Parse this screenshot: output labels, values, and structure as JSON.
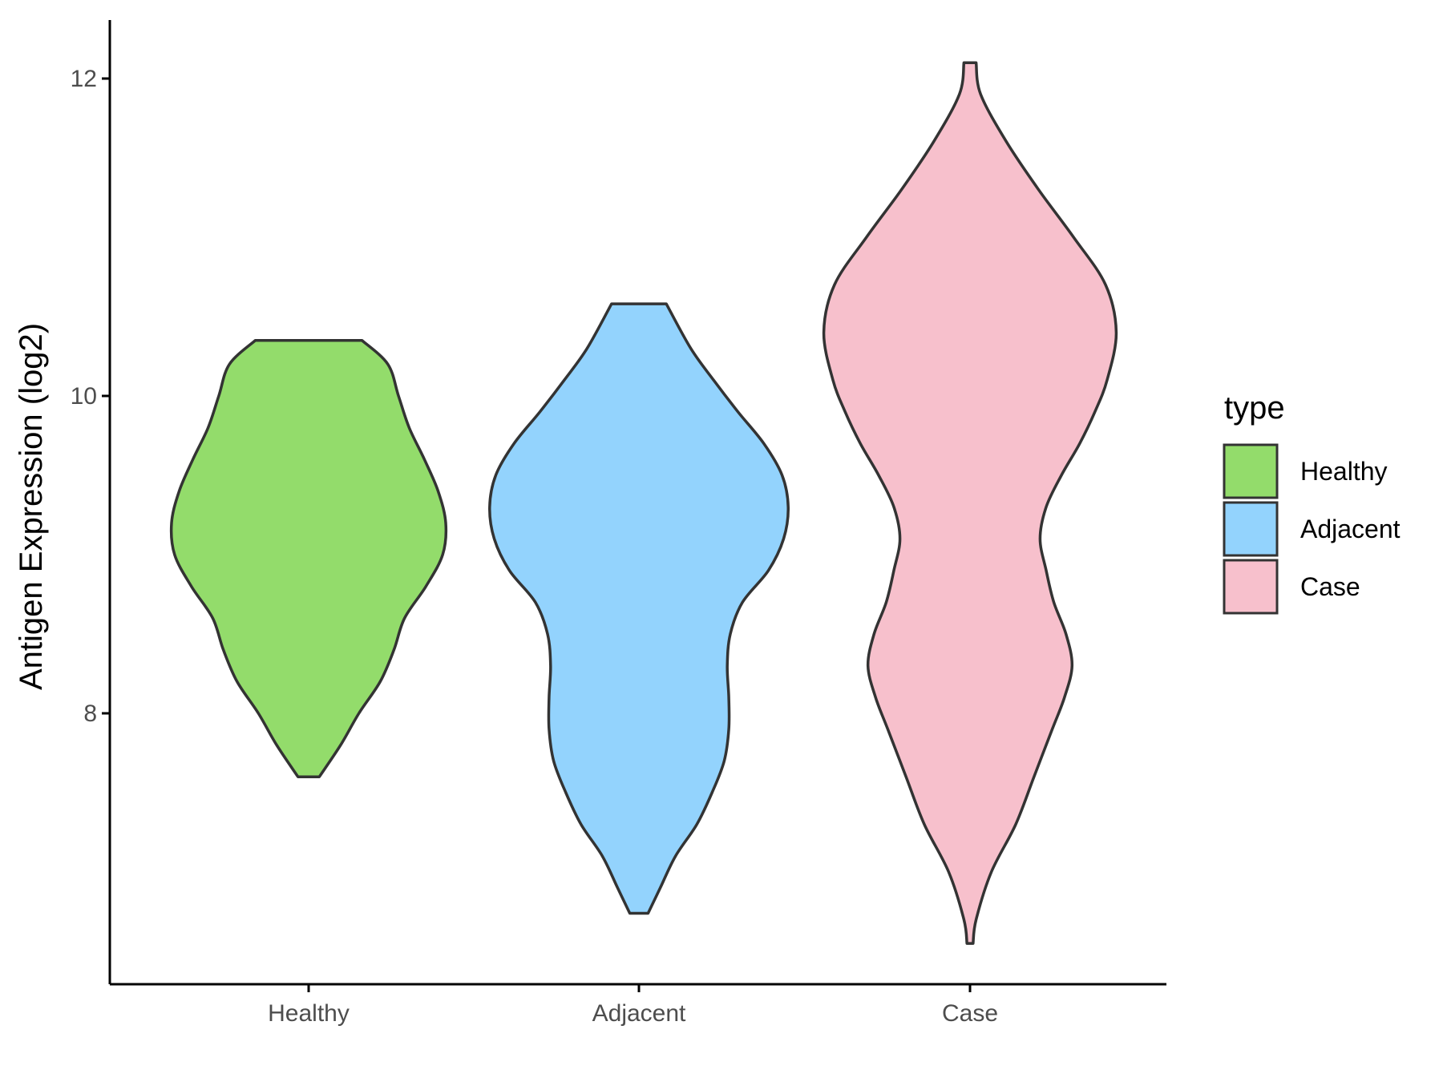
{
  "chart_data": {
    "type": "violin",
    "categories": [
      "Healthy",
      "Adjacent",
      "Case"
    ],
    "ylabel": "Antigen Expression (log2)",
    "xlabel": "",
    "ylim": [
      6.35,
      12.4
    ],
    "yticks": [
      8,
      10,
      12
    ],
    "grid": false,
    "legend": {
      "title": "type",
      "placement": "right",
      "entries": [
        {
          "label": "Healthy",
          "color": "#93dc6b"
        },
        {
          "label": "Adjacent",
          "color": "#93d3fd"
        },
        {
          "label": "Case",
          "color": "#f7c0cc"
        }
      ]
    },
    "outline_color": "#333333",
    "series": [
      {
        "category": "Healthy",
        "color": "#93dc6b",
        "min": 7.6,
        "max": 10.35,
        "density": [
          [
            7.6,
            0.07
          ],
          [
            7.8,
            0.21
          ],
          [
            8.0,
            0.33
          ],
          [
            8.2,
            0.47
          ],
          [
            8.4,
            0.56
          ],
          [
            8.6,
            0.63
          ],
          [
            8.8,
            0.77
          ],
          [
            9.0,
            0.88
          ],
          [
            9.2,
            0.9
          ],
          [
            9.4,
            0.85
          ],
          [
            9.6,
            0.76
          ],
          [
            9.8,
            0.66
          ],
          [
            10.0,
            0.59
          ],
          [
            10.2,
            0.52
          ],
          [
            10.35,
            0.35
          ]
        ]
      },
      {
        "category": "Adjacent",
        "color": "#93d3fd",
        "min": 6.74,
        "max": 10.58,
        "density": [
          [
            6.74,
            0.06
          ],
          [
            6.9,
            0.14
          ],
          [
            7.1,
            0.24
          ],
          [
            7.3,
            0.38
          ],
          [
            7.5,
            0.48
          ],
          [
            7.7,
            0.56
          ],
          [
            7.9,
            0.59
          ],
          [
            8.1,
            0.59
          ],
          [
            8.3,
            0.58
          ],
          [
            8.5,
            0.6
          ],
          [
            8.7,
            0.68
          ],
          [
            8.9,
            0.85
          ],
          [
            9.1,
            0.95
          ],
          [
            9.3,
            0.98
          ],
          [
            9.5,
            0.94
          ],
          [
            9.7,
            0.82
          ],
          [
            9.9,
            0.65
          ],
          [
            10.1,
            0.49
          ],
          [
            10.3,
            0.34
          ],
          [
            10.58,
            0.18
          ]
        ]
      },
      {
        "category": "Case",
        "color": "#f7c0cc",
        "min": 6.55,
        "max": 12.1,
        "density": [
          [
            6.55,
            0.02
          ],
          [
            6.7,
            0.04
          ],
          [
            7.0,
            0.14
          ],
          [
            7.3,
            0.3
          ],
          [
            7.6,
            0.42
          ],
          [
            7.9,
            0.54
          ],
          [
            8.1,
            0.62
          ],
          [
            8.3,
            0.67
          ],
          [
            8.5,
            0.63
          ],
          [
            8.7,
            0.55
          ],
          [
            8.9,
            0.5
          ],
          [
            9.1,
            0.46
          ],
          [
            9.3,
            0.5
          ],
          [
            9.5,
            0.6
          ],
          [
            9.7,
            0.72
          ],
          [
            9.9,
            0.82
          ],
          [
            10.1,
            0.9
          ],
          [
            10.4,
            0.96
          ],
          [
            10.7,
            0.89
          ],
          [
            11.0,
            0.68
          ],
          [
            11.3,
            0.45
          ],
          [
            11.6,
            0.24
          ],
          [
            11.9,
            0.07
          ],
          [
            12.1,
            0.04
          ]
        ]
      }
    ]
  }
}
